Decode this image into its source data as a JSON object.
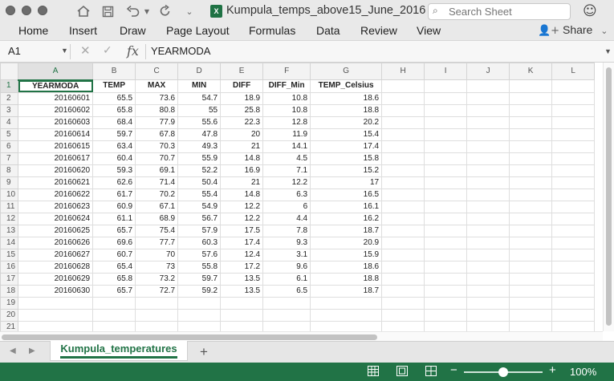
{
  "window": {
    "title": "Kumpula_temps_above15_June_2016",
    "file_icon_letter": "X",
    "search_placeholder": "Search Sheet"
  },
  "ribbon": {
    "tabs": [
      "Home",
      "Insert",
      "Draw",
      "Page Layout",
      "Formulas",
      "Data",
      "Review",
      "View"
    ],
    "share_label": "Share"
  },
  "formula_bar": {
    "name_box": "A1",
    "content": "YEARMODA"
  },
  "sheet": {
    "column_letters": [
      "A",
      "B",
      "C",
      "D",
      "E",
      "F",
      "G",
      "H",
      "I",
      "J",
      "K",
      "L"
    ],
    "headers": [
      "YEARMODA",
      "TEMP",
      "MAX",
      "MIN",
      "DIFF",
      "DIFF_Min",
      "TEMP_Celsius"
    ],
    "rows": [
      [
        "20160601",
        "65.5",
        "73.6",
        "54.7",
        "18.9",
        "10.8",
        "18.6"
      ],
      [
        "20160602",
        "65.8",
        "80.8",
        "55",
        "25.8",
        "10.8",
        "18.8"
      ],
      [
        "20160603",
        "68.4",
        "77.9",
        "55.6",
        "22.3",
        "12.8",
        "20.2"
      ],
      [
        "20160614",
        "59.7",
        "67.8",
        "47.8",
        "20",
        "11.9",
        "15.4"
      ],
      [
        "20160615",
        "63.4",
        "70.3",
        "49.3",
        "21",
        "14.1",
        "17.4"
      ],
      [
        "20160617",
        "60.4",
        "70.7",
        "55.9",
        "14.8",
        "4.5",
        "15.8"
      ],
      [
        "20160620",
        "59.3",
        "69.1",
        "52.2",
        "16.9",
        "7.1",
        "15.2"
      ],
      [
        "20160621",
        "62.6",
        "71.4",
        "50.4",
        "21",
        "12.2",
        "17"
      ],
      [
        "20160622",
        "61.7",
        "70.2",
        "55.4",
        "14.8",
        "6.3",
        "16.5"
      ],
      [
        "20160623",
        "60.9",
        "67.1",
        "54.9",
        "12.2",
        "6",
        "16.1"
      ],
      [
        "20160624",
        "61.1",
        "68.9",
        "56.7",
        "12.2",
        "4.4",
        "16.2"
      ],
      [
        "20160625",
        "65.7",
        "75.4",
        "57.9",
        "17.5",
        "7.8",
        "18.7"
      ],
      [
        "20160626",
        "69.6",
        "77.7",
        "60.3",
        "17.4",
        "9.3",
        "20.9"
      ],
      [
        "20160627",
        "60.7",
        "70",
        "57.6",
        "12.4",
        "3.1",
        "15.9"
      ],
      [
        "20160628",
        "65.4",
        "73",
        "55.8",
        "17.2",
        "9.6",
        "18.6"
      ],
      [
        "20160629",
        "65.8",
        "73.2",
        "59.7",
        "13.5",
        "6.1",
        "18.8"
      ],
      [
        "20160630",
        "65.7",
        "72.7",
        "59.2",
        "13.5",
        "6.5",
        "18.7"
      ]
    ],
    "row_numbers": [
      1,
      2,
      3,
      4,
      5,
      6,
      7,
      8,
      9,
      10,
      11,
      12,
      13,
      14,
      15,
      16,
      17,
      18,
      19,
      20,
      21
    ],
    "selected_cell": "A1"
  },
  "sheet_tabs": {
    "active": "Kumpula_temperatures"
  },
  "status_bar": {
    "zoom_level": "100%",
    "zoom_fraction": 0.5
  },
  "colors": {
    "accent": "#217346",
    "titlebar_bg": "#e9e9e9",
    "grid_line": "#dedede"
  }
}
